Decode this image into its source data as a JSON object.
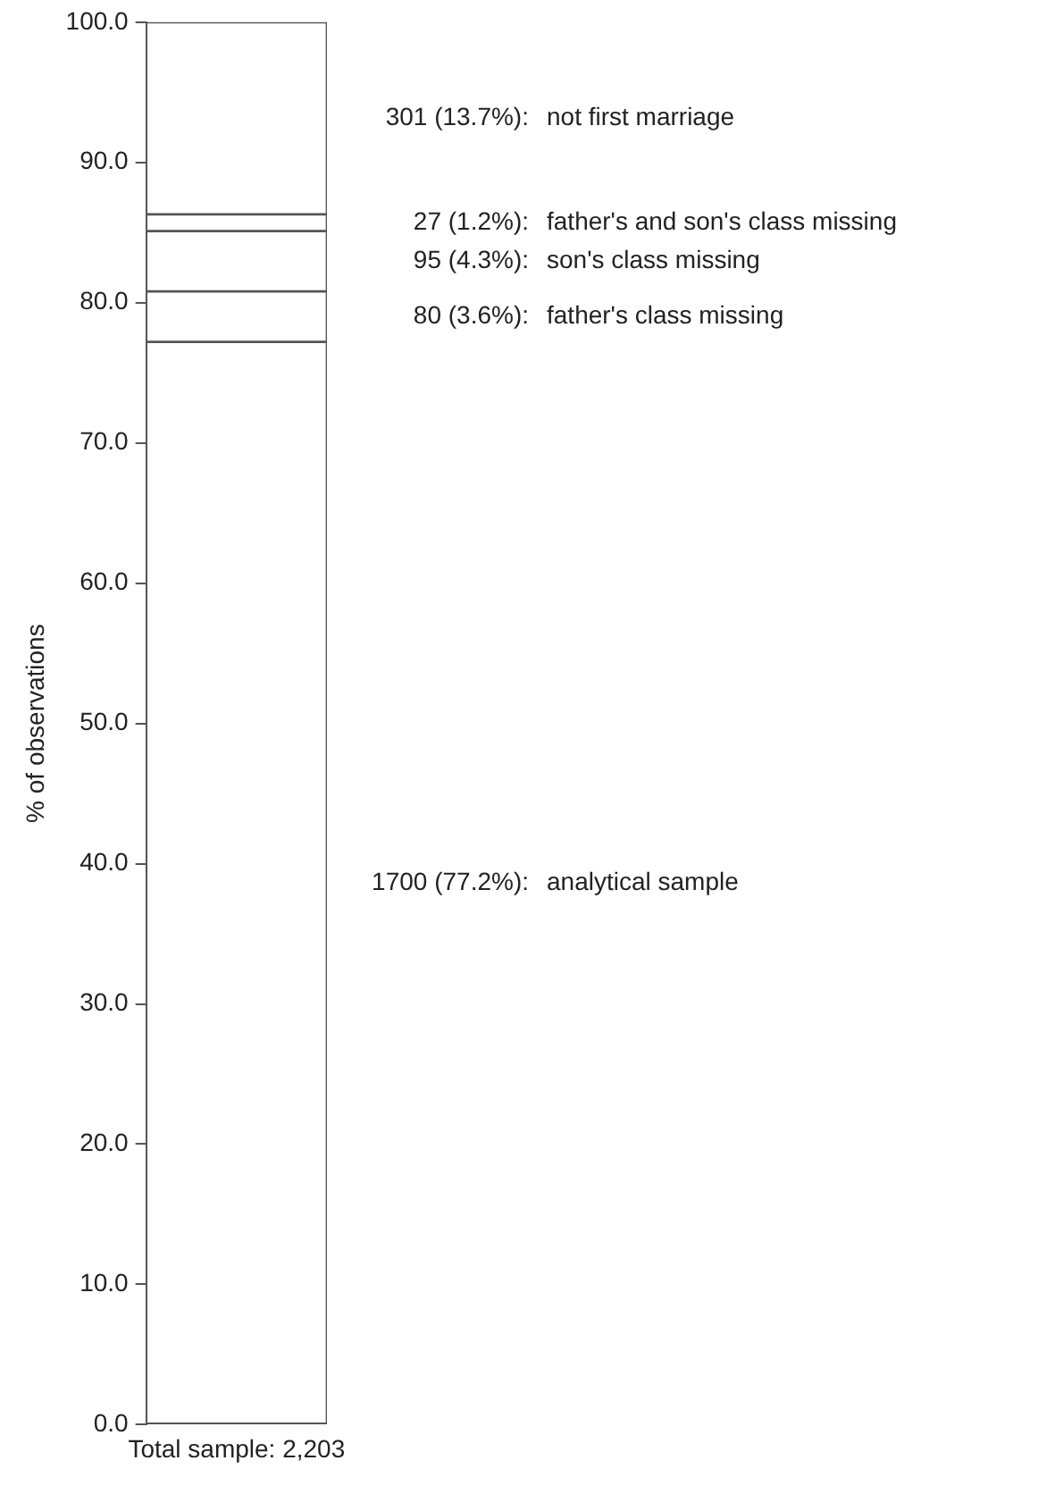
{
  "chart_data": {
    "type": "bar",
    "stacked": true,
    "categories": [
      "Total sample: 2,203"
    ],
    "ylabel": "% of observations",
    "ylim": [
      0,
      100
    ],
    "yticks": [
      {
        "value": 0,
        "label": "0.0"
      },
      {
        "value": 10,
        "label": "10.0"
      },
      {
        "value": 20,
        "label": "20.0"
      },
      {
        "value": 30,
        "label": "30.0"
      },
      {
        "value": 40,
        "label": "40.0"
      },
      {
        "value": 50,
        "label": "50.0"
      },
      {
        "value": 60,
        "label": "60.0"
      },
      {
        "value": 70,
        "label": "70.0"
      },
      {
        "value": 80,
        "label": "80.0"
      },
      {
        "value": 90,
        "label": "90.0"
      },
      {
        "value": 100,
        "label": "100.0"
      }
    ],
    "grid": false,
    "legend": false,
    "series": [
      {
        "name": "analytical sample",
        "color": "#ffffff",
        "values": [
          77.2
        ]
      },
      {
        "name": "father's class missing",
        "color": "#ffffff",
        "values": [
          3.6
        ]
      },
      {
        "name": "son's class missing",
        "color": "#ffffff",
        "values": [
          4.3
        ]
      },
      {
        "name": "father's and son's class missing",
        "color": "#ffffff",
        "values": [
          1.2
        ]
      },
      {
        "name": "not first marriage",
        "color": "#ffffff",
        "values": [
          13.7
        ]
      }
    ],
    "annotations": [
      "1700 (77.2%):",
      "80 (3.6%):",
      "95 (4.3%):",
      "27 (1.2%):",
      "301 (13.7%):"
    ]
  }
}
